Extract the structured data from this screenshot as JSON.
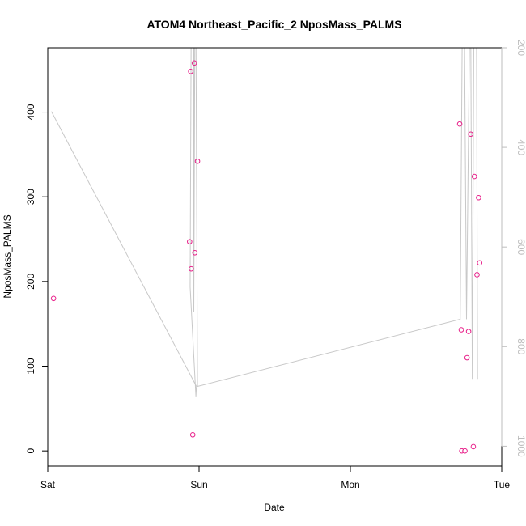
{
  "chart_data": {
    "type": "scatter",
    "title": "ATOM4 Northeast_Pacific_2 NposMass_PALMS",
    "xlabel": "Date",
    "ylabel": "NposMass_PALMS",
    "x_ticks": [
      "Sat",
      "Sun",
      "Mon",
      "Tue"
    ],
    "xlim": [
      "Sat 00:00",
      "Tue 00:00"
    ],
    "ylim": [
      -18,
      476
    ],
    "y_ticks": [
      0,
      100,
      200,
      300,
      400
    ],
    "y2lim": [
      1040,
      200
    ],
    "y2_ticks": [
      200,
      400,
      600,
      800,
      1000
    ],
    "points_color": "#e8208a",
    "line_color": "#c8c8c8",
    "series": [
      {
        "points": [
          {
            "x": "Sat 00:55",
            "y": 180
          },
          {
            "x": "Sat 22:40",
            "y": 448
          },
          {
            "x": "Sat 22:30",
            "y": 247
          },
          {
            "x": "Sat 22:45",
            "y": 215
          },
          {
            "x": "Sat 23:00",
            "y": 19
          },
          {
            "x": "Sat 23:15",
            "y": 458
          },
          {
            "x": "Sat 23:20",
            "y": 234
          },
          {
            "x": "Sat 23:45",
            "y": 342
          },
          {
            "x": "Mon 17:20",
            "y": 386
          },
          {
            "x": "Mon 17:35",
            "y": 143
          },
          {
            "x": "Mon 17:40",
            "y": 0
          },
          {
            "x": "Mon 18:10",
            "y": 0
          },
          {
            "x": "Mon 18:30",
            "y": 110
          },
          {
            "x": "Mon 18:45",
            "y": 141
          },
          {
            "x": "Mon 19:05",
            "y": 374
          },
          {
            "x": "Mon 19:30",
            "y": 5
          },
          {
            "x": "Mon 19:40",
            "y": 324
          },
          {
            "x": "Mon 20:05",
            "y": 208
          },
          {
            "x": "Mon 20:20",
            "y": 299
          },
          {
            "x": "Mon 20:30",
            "y": 222
          }
        ]
      },
      {
        "axis": "right",
        "line": [
          {
            "x": "Sat 00:35",
            "y": 328
          },
          {
            "x": "Sat 23:35",
            "y": 880
          },
          {
            "x": "Sat 23:30",
            "y": 900
          },
          {
            "x": "Sat 22:35",
            "y": 680
          },
          {
            "x": "Sat 22:45",
            "y": 150
          },
          {
            "x": "Sat 23:10",
            "y": 150
          },
          {
            "x": "Sat 23:10",
            "y": 730
          },
          {
            "x": "Sat 23:20",
            "y": 150
          },
          {
            "x": "Sat 23:30",
            "y": 150
          },
          {
            "x": "Sat 23:45",
            "y": 880
          },
          {
            "x": "Mon 17:25",
            "y": 745
          },
          {
            "x": "Mon 17:45",
            "y": 150
          },
          {
            "x": "Mon 18:05",
            "y": 150
          },
          {
            "x": "Mon 18:25",
            "y": 745
          },
          {
            "x": "Mon 18:55",
            "y": 150
          },
          {
            "x": "Mon 19:05",
            "y": 150
          },
          {
            "x": "Mon 19:20",
            "y": 865
          },
          {
            "x": "Mon 19:35",
            "y": 150
          },
          {
            "x": "Mon 20:00",
            "y": 150
          },
          {
            "x": "Mon 20:10",
            "y": 865
          }
        ]
      }
    ]
  }
}
